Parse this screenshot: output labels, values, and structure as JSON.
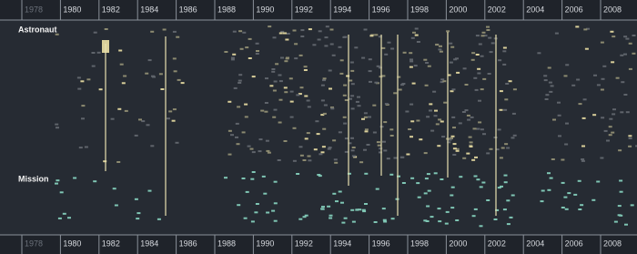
{
  "axis": {
    "years": [
      1978,
      1980,
      1982,
      1984,
      1986,
      1988,
      1990,
      1992,
      1994,
      1996,
      1998,
      2000,
      2002,
      2004,
      2006,
      2008
    ]
  },
  "sections": {
    "astronaut": "Astronaut",
    "mission": "Mission"
  }
}
